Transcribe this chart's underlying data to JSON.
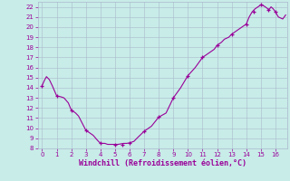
{
  "xlabel": "Windchill (Refroidissement éolien,°C)",
  "xlim": [
    -0.3,
    16.8
  ],
  "ylim": [
    8,
    22.5
  ],
  "yticks": [
    8,
    9,
    10,
    11,
    12,
    13,
    14,
    15,
    16,
    17,
    18,
    19,
    20,
    21,
    22
  ],
  "xticks": [
    0,
    1,
    2,
    3,
    4,
    5,
    6,
    7,
    8,
    9,
    10,
    11,
    12,
    13,
    14,
    15,
    16
  ],
  "bg_color": "#c8ece8",
  "grid_color": "#aab8cc",
  "line_color": "#990099",
  "x": [
    0,
    0.15,
    0.3,
    0.5,
    0.7,
    1.0,
    1.3,
    1.5,
    1.8,
    2.0,
    2.3,
    2.5,
    3.0,
    3.3,
    3.5,
    3.8,
    4.0,
    4.3,
    4.5,
    4.7,
    5.0,
    5.2,
    5.4,
    5.6,
    5.8,
    6.0,
    6.3,
    6.5,
    7.0,
    7.5,
    8.0,
    8.5,
    9.0,
    9.5,
    10.0,
    10.5,
    11.0,
    11.3,
    11.5,
    11.8,
    12.0,
    12.3,
    12.5,
    12.8,
    13.0,
    13.2,
    13.4,
    13.6,
    13.8,
    14.0,
    14.2,
    14.4,
    14.6,
    14.8,
    15.0,
    15.2,
    15.4,
    15.55,
    15.7,
    15.85,
    16.0,
    16.2,
    16.5,
    16.7
  ],
  "y": [
    14.2,
    14.7,
    15.1,
    14.8,
    14.2,
    13.2,
    13.1,
    13.0,
    12.5,
    11.8,
    11.5,
    11.2,
    9.8,
    9.5,
    9.3,
    8.8,
    8.5,
    8.5,
    8.4,
    8.4,
    8.4,
    8.4,
    8.45,
    8.5,
    8.5,
    8.55,
    8.7,
    9.0,
    9.7,
    10.2,
    11.1,
    11.5,
    13.0,
    14.0,
    15.2,
    16.0,
    17.0,
    17.3,
    17.5,
    17.8,
    18.2,
    18.5,
    18.8,
    19.0,
    19.3,
    19.5,
    19.7,
    19.9,
    20.1,
    20.3,
    21.0,
    21.5,
    21.8,
    22.0,
    22.2,
    22.1,
    21.9,
    21.7,
    22.0,
    21.8,
    21.5,
    21.0,
    20.8,
    21.2
  ],
  "marker_x": [
    0,
    1,
    2,
    3,
    4,
    5,
    5.5,
    6,
    7,
    8,
    9,
    10,
    11,
    12,
    13,
    14,
    14.5,
    15,
    15.5,
    16
  ],
  "marker_y": [
    14.2,
    13.2,
    11.8,
    9.8,
    8.5,
    8.4,
    8.4,
    8.55,
    9.7,
    11.1,
    13.0,
    15.2,
    17.0,
    18.2,
    19.3,
    20.3,
    21.5,
    22.2,
    21.7,
    21.5
  ]
}
